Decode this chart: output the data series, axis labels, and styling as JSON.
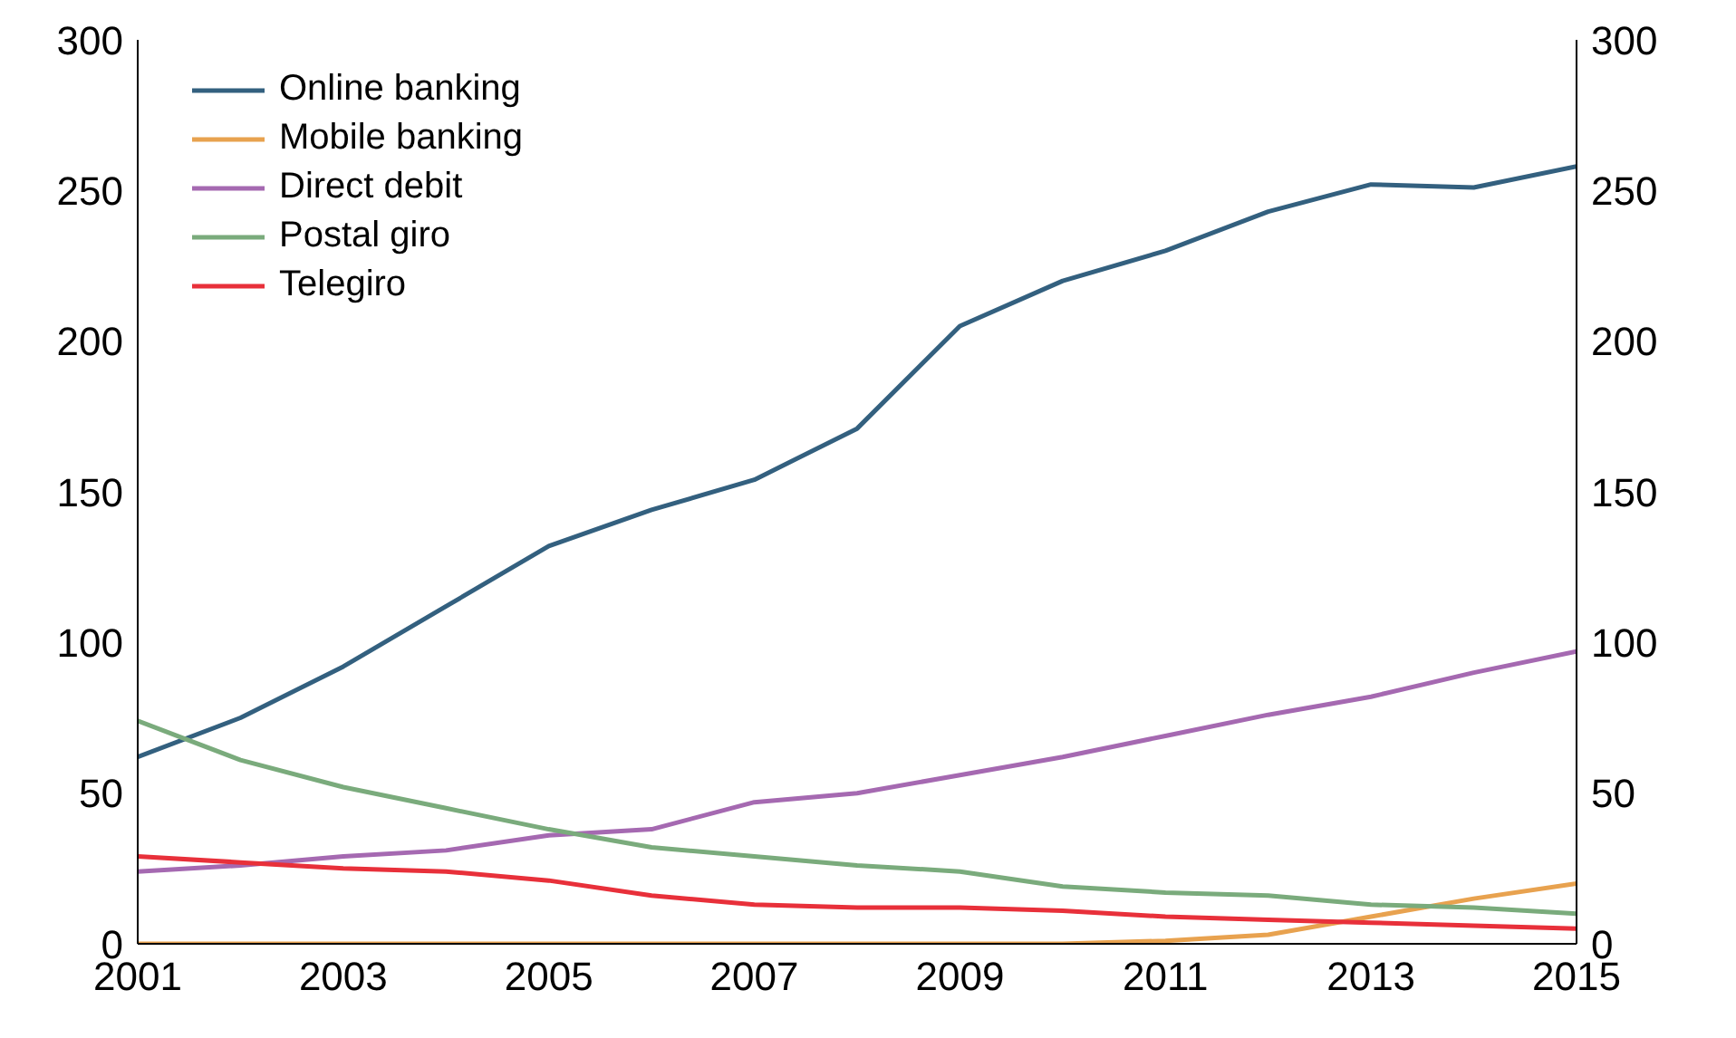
{
  "chart_data": {
    "type": "line",
    "x": [
      2001,
      2002,
      2003,
      2004,
      2005,
      2006,
      2007,
      2008,
      2009,
      2010,
      2011,
      2012,
      2013,
      2014,
      2015
    ],
    "xlim": [
      2001,
      2015
    ],
    "xticks": [
      2001,
      2003,
      2005,
      2007,
      2009,
      2011,
      2013,
      2015
    ],
    "ylim": [
      0,
      300
    ],
    "yticks": [
      0,
      50,
      100,
      150,
      200,
      250,
      300
    ],
    "y2lim": [
      0,
      300
    ],
    "y2ticks": [
      0,
      50,
      100,
      150,
      200,
      250,
      300
    ],
    "grid": false,
    "legend": "top left",
    "marker": "none",
    "line_style": "solid",
    "series": [
      {
        "name": "Online banking",
        "color": "#33607f",
        "values": [
          62,
          75,
          92,
          112,
          132,
          144,
          154,
          171,
          205,
          220,
          230,
          243,
          252,
          251,
          258
        ]
      },
      {
        "name": "Mobile banking",
        "color": "#e8a24f",
        "values": [
          0,
          0,
          0,
          0,
          0,
          0,
          0,
          0,
          0,
          0,
          1,
          3,
          9,
          15,
          20
        ]
      },
      {
        "name": "Direct debit",
        "color": "#a569b1",
        "values": [
          24,
          26,
          29,
          31,
          36,
          38,
          47,
          50,
          56,
          62,
          69,
          76,
          82,
          90,
          97
        ]
      },
      {
        "name": "Postal giro",
        "color": "#7aab7c",
        "values": [
          74,
          61,
          52,
          45,
          38,
          32,
          29,
          26,
          24,
          19,
          17,
          16,
          13,
          12,
          10
        ]
      },
      {
        "name": "Telegiro",
        "color": "#e8303a",
        "values": [
          29,
          27,
          25,
          24,
          21,
          16,
          13,
          12,
          12,
          11,
          9,
          8,
          7,
          6,
          5
        ]
      }
    ]
  }
}
